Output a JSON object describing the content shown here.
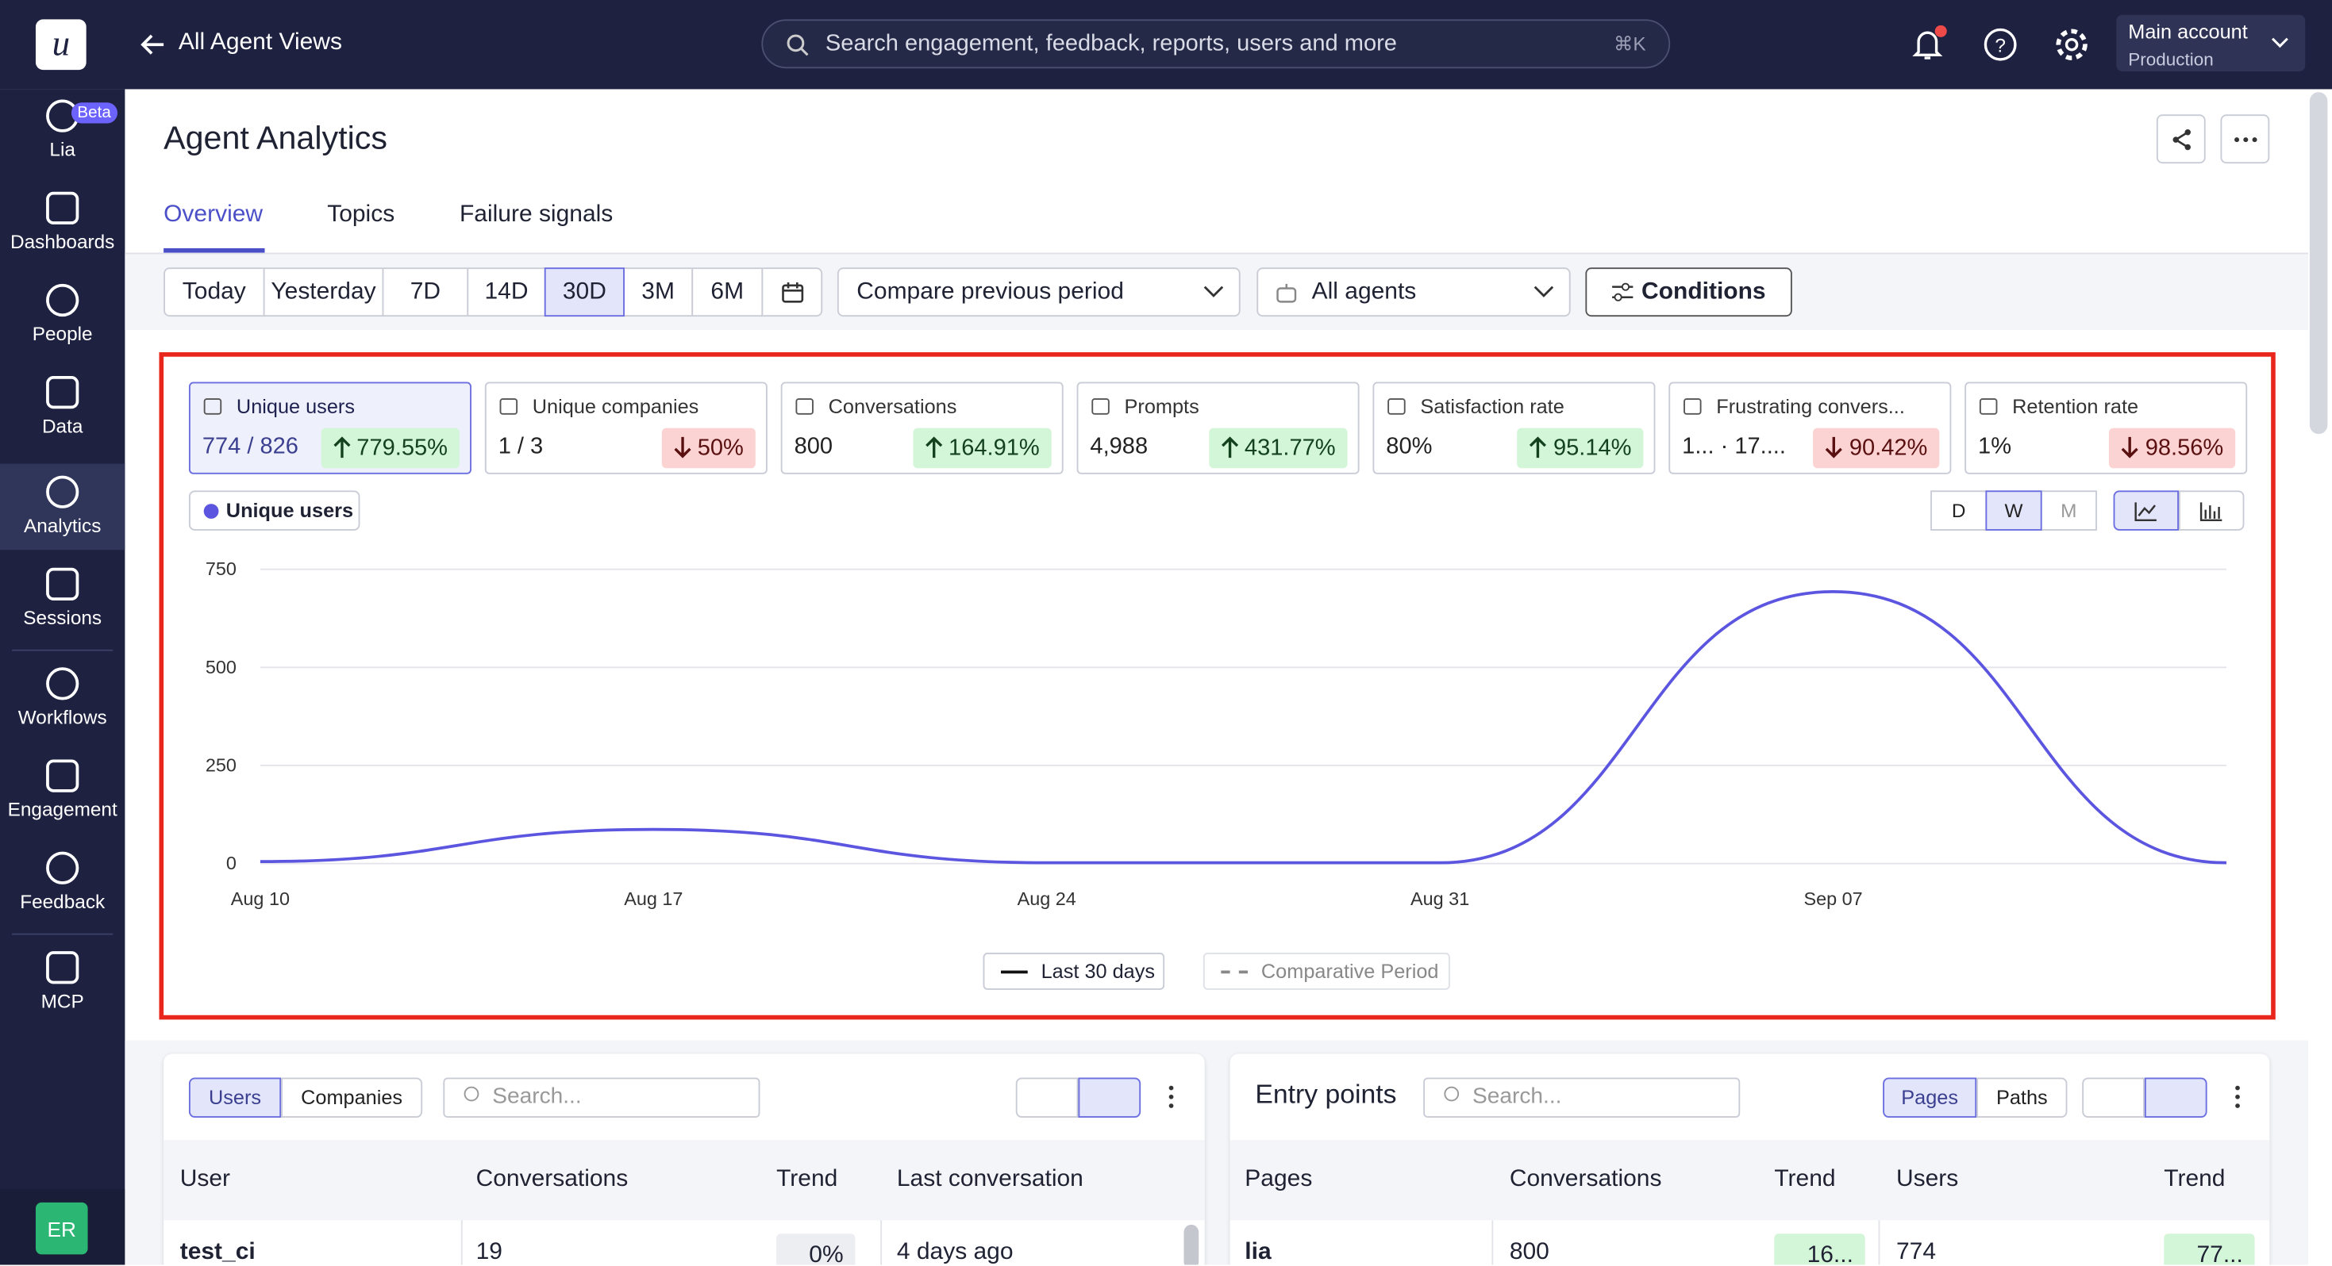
{
  "topbar": {
    "logo": "u",
    "back": "All Agent Views",
    "search": "Search engagement, feedback, reports, users and more",
    "shortcut": "⌘K",
    "account": "Main account",
    "environment": "Production"
  },
  "sidebar": {
    "items": [
      {
        "label": "Lia",
        "badge": "Beta"
      },
      {
        "label": "Dashboards"
      },
      {
        "label": "People"
      },
      {
        "label": "Data"
      },
      {
        "label": "Analytics"
      },
      {
        "label": "Sessions"
      },
      {
        "label": "Workflows"
      },
      {
        "label": "Engagement"
      },
      {
        "label": "Feedback"
      },
      {
        "label": "MCP"
      }
    ],
    "active": 4,
    "avatar": "ER"
  },
  "page": {
    "title": "Agent Analytics",
    "tabs": [
      "Overview",
      "Topics",
      "Failure signals"
    ],
    "active_tab": 0,
    "ranges": [
      "Today",
      "Yesterday",
      "7D",
      "14D",
      "30D",
      "3M",
      "6M"
    ],
    "active_range": 4,
    "compare": "Compare previous period",
    "agents": "All agents",
    "conditions": "Conditions"
  },
  "metrics": [
    {
      "label": "Unique users",
      "value": "774 / 826",
      "change": "779.55%",
      "direction": "up"
    },
    {
      "label": "Unique companies",
      "value": "1 / 3",
      "change": "50%",
      "direction": "down"
    },
    {
      "label": "Conversations",
      "value": "800",
      "change": "164.91%",
      "direction": "up"
    },
    {
      "label": "Prompts",
      "value": "4,988",
      "change": "431.77%",
      "direction": "up"
    },
    {
      "label": "Satisfaction rate",
      "value": "80%",
      "change": "95.14%",
      "direction": "up"
    },
    {
      "label": "Frustrating convers...",
      "value": "1... · 17....",
      "change": "90.42%",
      "direction": "down"
    },
    {
      "label": "Retention rate",
      "value": "1%",
      "change": "98.56%",
      "direction": "down"
    }
  ],
  "intervals": [
    "D",
    "W",
    "M"
  ],
  "active_interval": 1,
  "chart_data": {
    "type": "line",
    "series": [
      {
        "name": "Unique users",
        "color": "#5b55e0",
        "values": [
          5,
          87,
          2,
          2,
          693,
          2
        ]
      }
    ],
    "categories": [
      "Aug 10",
      "Aug 17",
      "Aug 24",
      "Aug 31",
      "Sep 07",
      null
    ],
    "ylim": [
      0,
      750
    ],
    "yticks": [
      0,
      250,
      500,
      750
    ],
    "grid": true,
    "period_legend": [
      "Last 30 days",
      "Comparative Period"
    ]
  },
  "users_table": {
    "toggles": [
      "Users",
      "Companies"
    ],
    "search": "Search...",
    "columns": [
      "User",
      "Conversations",
      "Trend",
      "Last conversation"
    ],
    "rows": [
      [
        "test_ci",
        "19",
        "0%",
        "4 days ago"
      ]
    ]
  },
  "entry_points": {
    "title": "Entry points",
    "search": "Search...",
    "toggles": [
      "Pages",
      "Paths"
    ],
    "columns": [
      "Pages",
      "Conversations",
      "Trend",
      "Users",
      "Trend"
    ],
    "rows": [
      [
        "lia",
        "800",
        "16...",
        "774",
        "77..."
      ]
    ]
  }
}
